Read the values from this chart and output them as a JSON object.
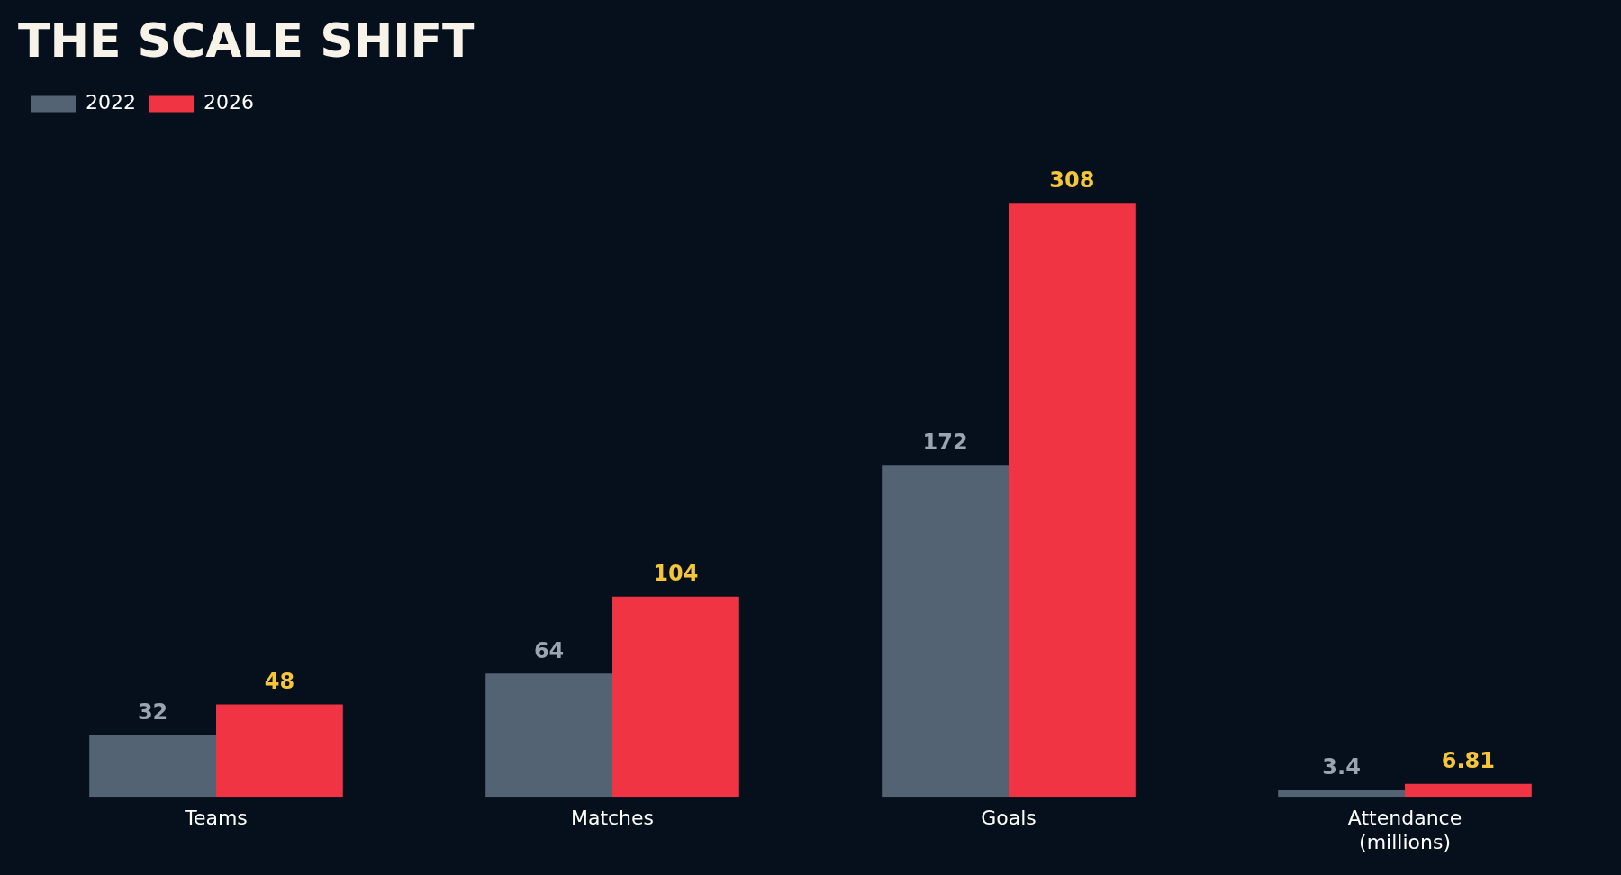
{
  "chart_data": {
    "type": "bar",
    "title": "THE SCALE SHIFT",
    "categories": [
      "Teams",
      "Matches",
      "Goals",
      "Attendance (millions)"
    ],
    "series": [
      {
        "name": "2022",
        "color": "#546374",
        "values": [
          32,
          64,
          172,
          3.4
        ]
      },
      {
        "name": "2026",
        "color": "#f03444",
        "values": [
          48,
          104,
          308,
          6.81
        ]
      }
    ],
    "data_labels": true,
    "legend": "top left",
    "grid": false
  }
}
